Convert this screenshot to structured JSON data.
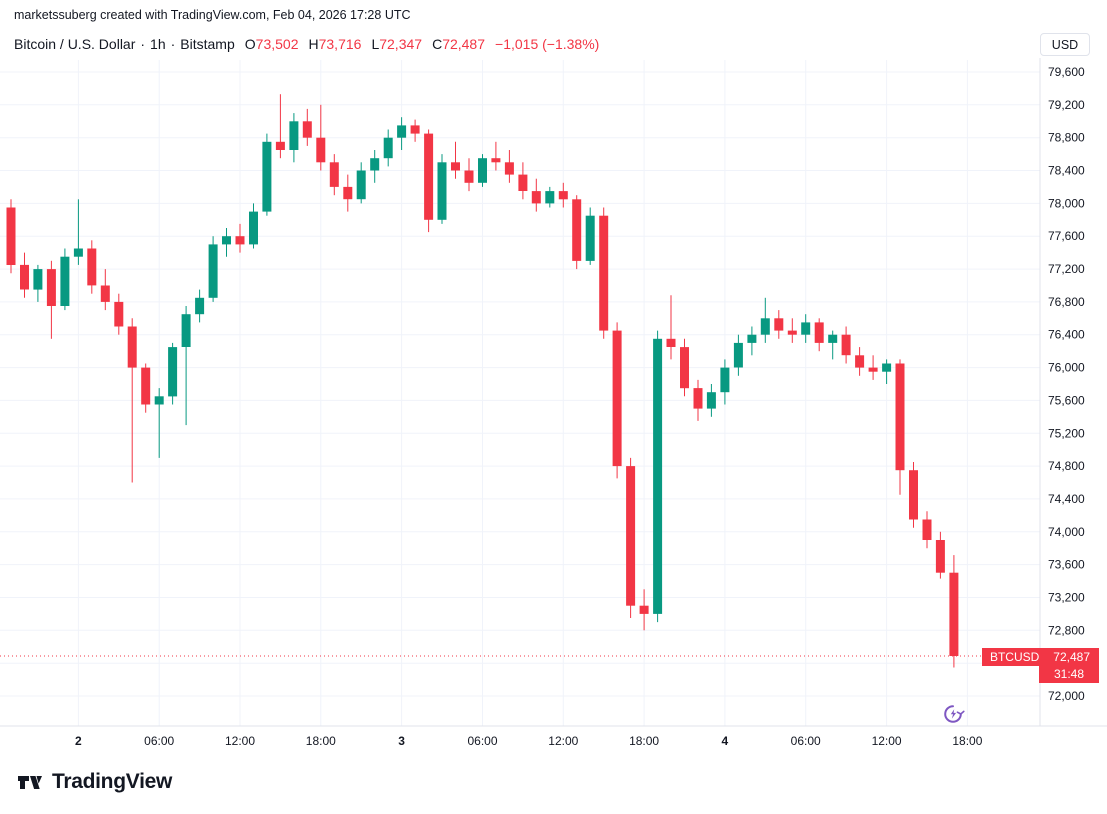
{
  "attribution": "marketssuberg created with TradingView.com, Feb 04, 2026 17:28 UTC",
  "header": {
    "symbol_name": "Bitcoin / U.S. Dollar",
    "separator": "·",
    "interval": "1h",
    "exchange": "Bitstamp",
    "ohlc": {
      "o_label": "O",
      "o_value": "73,502",
      "h_label": "H",
      "h_value": "73,716",
      "l_label": "L",
      "l_value": "72,347",
      "c_label": "C",
      "c_value": "72,487"
    },
    "change": "−1,015 (−1.38%)"
  },
  "price_scale": {
    "currency_button": "USD"
  },
  "price_label": {
    "symbol": "BTCUSD",
    "price": "72,487",
    "countdown": "31:48"
  },
  "footer": {
    "logo_text": "TradingView"
  },
  "colors": {
    "up": "#089981",
    "down": "#f23645",
    "grid": "#f0f3fa",
    "axis_border": "#e0e3eb",
    "axis_text": "#131722",
    "label_bg": "#f23645",
    "label_text": "#ffffff",
    "icon_purple": "#7e57c2",
    "header_text": "#131722"
  },
  "chart_data": {
    "type": "candlestick",
    "symbol": "BTCUSD",
    "exchange": "Bitstamp",
    "interval": "1h",
    "first_candle_time": "Feb 1, 2026 19:00 UTC",
    "interval_hours": 1,
    "last_price": 72487,
    "price_axis": {
      "min": 72000,
      "max": 79600,
      "step": 400
    },
    "y_ticks": [
      79600,
      79200,
      78800,
      78400,
      78000,
      77600,
      77200,
      76800,
      76400,
      76000,
      75600,
      75200,
      74800,
      74400,
      74000,
      73600,
      73200,
      72800,
      72400,
      72000
    ],
    "x_ticks": [
      {
        "index": 5,
        "label": "2",
        "major": true
      },
      {
        "index": 11,
        "label": "06:00",
        "major": false
      },
      {
        "index": 17,
        "label": "12:00",
        "major": false
      },
      {
        "index": 23,
        "label": "18:00",
        "major": false
      },
      {
        "index": 29,
        "label": "3",
        "major": true
      },
      {
        "index": 35,
        "label": "06:00",
        "major": false
      },
      {
        "index": 41,
        "label": "12:00",
        "major": false
      },
      {
        "index": 47,
        "label": "18:00",
        "major": false
      },
      {
        "index": 53,
        "label": "4",
        "major": true
      },
      {
        "index": 59,
        "label": "06:00",
        "major": false
      },
      {
        "index": 65,
        "label": "12:00",
        "major": false
      },
      {
        "index": 71,
        "label": "18:00",
        "major": false
      }
    ],
    "ohlc_columns": [
      "open",
      "high",
      "low",
      "close"
    ],
    "candles_ohlc": [
      [
        77950,
        78050,
        77150,
        77250
      ],
      [
        77250,
        77400,
        76850,
        76950
      ],
      [
        76950,
        77250,
        76800,
        77200
      ],
      [
        77200,
        77300,
        76350,
        76750
      ],
      [
        76750,
        77450,
        76700,
        77350
      ],
      [
        77350,
        78050,
        77250,
        77450
      ],
      [
        77450,
        77550,
        76900,
        77000
      ],
      [
        77000,
        77200,
        76700,
        76800
      ],
      [
        76800,
        76900,
        76400,
        76500
      ],
      [
        76500,
        76600,
        74600,
        76000
      ],
      [
        76000,
        76050,
        75450,
        75550
      ],
      [
        75550,
        75750,
        74900,
        75650
      ],
      [
        75650,
        76300,
        75550,
        76250
      ],
      [
        76250,
        76750,
        75300,
        76650
      ],
      [
        76650,
        76950,
        76550,
        76850
      ],
      [
        76850,
        77600,
        76800,
        77500
      ],
      [
        77500,
        77700,
        77350,
        77600
      ],
      [
        77600,
        77750,
        77400,
        77500
      ],
      [
        77500,
        78000,
        77450,
        77900
      ],
      [
        77900,
        78850,
        77850,
        78750
      ],
      [
        78750,
        79330,
        78550,
        78650
      ],
      [
        78650,
        79100,
        78500,
        79000
      ],
      [
        79000,
        79150,
        78700,
        78800
      ],
      [
        78800,
        79200,
        78400,
        78500
      ],
      [
        78500,
        78600,
        78100,
        78200
      ],
      [
        78200,
        78350,
        77900,
        78050
      ],
      [
        78050,
        78500,
        78000,
        78400
      ],
      [
        78400,
        78650,
        78250,
        78550
      ],
      [
        78550,
        78900,
        78450,
        78800
      ],
      [
        78800,
        79050,
        78650,
        78950
      ],
      [
        78950,
        79020,
        78750,
        78850
      ],
      [
        78850,
        78900,
        77650,
        77800
      ],
      [
        77800,
        78600,
        77750,
        78500
      ],
      [
        78500,
        78750,
        78300,
        78400
      ],
      [
        78400,
        78550,
        78150,
        78250
      ],
      [
        78250,
        78600,
        78200,
        78550
      ],
      [
        78550,
        78750,
        78400,
        78500
      ],
      [
        78500,
        78650,
        78250,
        78350
      ],
      [
        78350,
        78500,
        78050,
        78150
      ],
      [
        78150,
        78300,
        77900,
        78000
      ],
      [
        78000,
        78200,
        77950,
        78150
      ],
      [
        78150,
        78250,
        77950,
        78050
      ],
      [
        78050,
        78100,
        77200,
        77300
      ],
      [
        77300,
        77950,
        77250,
        77850
      ],
      [
        77850,
        77950,
        76350,
        76450
      ],
      [
        76450,
        76550,
        74650,
        74800
      ],
      [
        74800,
        74900,
        72950,
        73100
      ],
      [
        73100,
        73300,
        72800,
        73000
      ],
      [
        73000,
        76450,
        72900,
        76350
      ],
      [
        76350,
        76880,
        76100,
        76250
      ],
      [
        76250,
        76350,
        75650,
        75750
      ],
      [
        75750,
        75850,
        75350,
        75500
      ],
      [
        75500,
        75800,
        75400,
        75700
      ],
      [
        75700,
        76100,
        75550,
        76000
      ],
      [
        76000,
        76400,
        75900,
        76300
      ],
      [
        76300,
        76500,
        76150,
        76400
      ],
      [
        76400,
        76850,
        76300,
        76600
      ],
      [
        76600,
        76700,
        76350,
        76450
      ],
      [
        76450,
        76600,
        76300,
        76400
      ],
      [
        76400,
        76650,
        76300,
        76550
      ],
      [
        76550,
        76600,
        76200,
        76300
      ],
      [
        76300,
        76450,
        76100,
        76400
      ],
      [
        76400,
        76500,
        76050,
        76150
      ],
      [
        76150,
        76250,
        75900,
        76000
      ],
      [
        76000,
        76150,
        75850,
        75950
      ],
      [
        75950,
        76100,
        75800,
        76050
      ],
      [
        76050,
        76100,
        74450,
        74750
      ],
      [
        74750,
        74850,
        74050,
        74150
      ],
      [
        74150,
        74250,
        73800,
        73900
      ],
      [
        73900,
        74000,
        73430,
        73502
      ],
      [
        73502,
        73716,
        72347,
        72487
      ]
    ]
  }
}
